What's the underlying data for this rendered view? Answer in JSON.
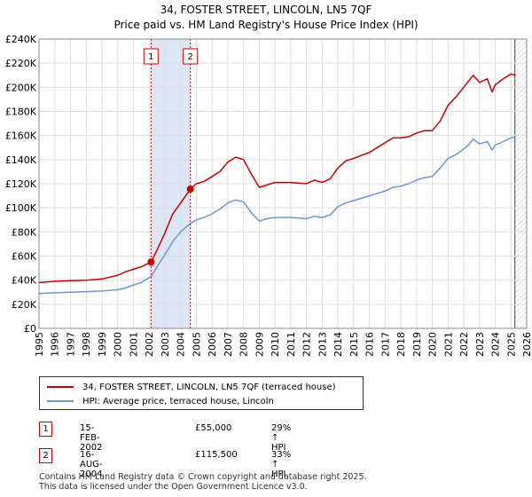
{
  "header": {
    "title": "34, FOSTER STREET, LINCOLN, LN5 7QF",
    "subtitle": "Price paid vs. HM Land Registry's House Price Index (HPI)"
  },
  "colors": {
    "property": "#cc0000",
    "hpi": "#6b98d4",
    "band": "#dde6f5",
    "grid": "#dddddd"
  },
  "chart_data": {
    "type": "line",
    "title": "34, FOSTER STREET, LINCOLN, LN5 7QF",
    "subtitle": "Price paid vs. HM Land Registry's House Price Index (HPI)",
    "xlabel": "",
    "ylabel": "",
    "xlim": [
      1995,
      2026
    ],
    "ylim": [
      0,
      240000
    ],
    "grid": true,
    "x_ticks": [
      1995,
      1996,
      1997,
      1998,
      1999,
      2000,
      2001,
      2002,
      2003,
      2004,
      2005,
      2006,
      2007,
      2008,
      2009,
      2010,
      2011,
      2012,
      2013,
      2014,
      2015,
      2016,
      2017,
      2018,
      2019,
      2020,
      2021,
      2022,
      2023,
      2024,
      2025,
      2026
    ],
    "x_tick_labels": [
      "1995",
      "1996",
      "1997",
      "1998",
      "1999",
      "2000",
      "2001",
      "2002",
      "2003",
      "2004",
      "2005",
      "2006",
      "2007",
      "2008",
      "2009",
      "2010",
      "2011",
      "2012",
      "2013",
      "2014",
      "2015",
      "2016",
      "2017",
      "2018",
      "2019",
      "2020",
      "2021",
      "2022",
      "2023",
      "2024",
      "2025",
      "2026"
    ],
    "y_ticks": [
      0,
      20000,
      40000,
      60000,
      80000,
      100000,
      120000,
      140000,
      160000,
      180000,
      200000,
      220000,
      240000
    ],
    "y_tick_labels": [
      "£0",
      "£20K",
      "£40K",
      "£60K",
      "£80K",
      "£100K",
      "£120K",
      "£140K",
      "£160K",
      "£180K",
      "£200K",
      "£220K",
      "£240K"
    ],
    "series": [
      {
        "name": "34, FOSTER STREET, LINCOLN, LN5 7QF (terraced house)",
        "x": [
          1995.0,
          1996.0,
          1997.0,
          1998.0,
          1999.0,
          2000.0,
          2000.5,
          2001.0,
          2001.5,
          2002.12,
          2002.5,
          2003.0,
          2003.5,
          2004.0,
          2004.62,
          2005.0,
          2005.5,
          2006.0,
          2006.5,
          2007.0,
          2007.5,
          2008.0,
          2008.5,
          2009.0,
          2009.5,
          2010.0,
          2011.0,
          2012.0,
          2012.5,
          2013.0,
          2013.5,
          2014.0,
          2014.5,
          2015.0,
          2016.0,
          2017.0,
          2017.5,
          2018.0,
          2018.5,
          2019.0,
          2019.5,
          2020.0,
          2020.5,
          2021.0,
          2021.5,
          2022.0,
          2022.3,
          2022.6,
          2023.0,
          2023.5,
          2023.8,
          2024.0,
          2024.5,
          2025.0,
          2025.3
        ],
        "values": [
          38000,
          39000,
          39500,
          40000,
          41000,
          44000,
          47000,
          49000,
          51000,
          55000,
          65000,
          79000,
          95000,
          104000,
          115500,
          120000,
          122000,
          126000,
          130000,
          138000,
          142000,
          140000,
          128000,
          117000,
          119000,
          121000,
          121000,
          120000,
          123000,
          121000,
          124000,
          133000,
          139000,
          141000,
          146000,
          154000,
          158000,
          158000,
          159000,
          162000,
          164000,
          164000,
          172000,
          185000,
          192000,
          200000,
          205000,
          210000,
          204000,
          207000,
          196000,
          202000,
          207000,
          211000,
          210000
        ]
      },
      {
        "name": "HPI: Average price, terraced house, Lincoln",
        "x": [
          1995.0,
          1996.0,
          1997.0,
          1998.0,
          1999.0,
          2000.0,
          2000.5,
          2001.0,
          2001.5,
          2002.12,
          2002.5,
          2003.0,
          2003.5,
          2004.0,
          2004.62,
          2005.0,
          2005.5,
          2006.0,
          2006.5,
          2007.0,
          2007.5,
          2008.0,
          2008.5,
          2009.0,
          2009.5,
          2010.0,
          2011.0,
          2012.0,
          2012.5,
          2013.0,
          2013.5,
          2014.0,
          2014.5,
          2015.0,
          2016.0,
          2017.0,
          2017.5,
          2018.0,
          2018.5,
          2019.0,
          2019.5,
          2020.0,
          2020.5,
          2021.0,
          2021.5,
          2022.0,
          2022.3,
          2022.6,
          2023.0,
          2023.5,
          2023.8,
          2024.0,
          2024.5,
          2025.0,
          2025.3
        ],
        "values": [
          29000,
          29500,
          30000,
          30500,
          31000,
          32000,
          33500,
          36000,
          38000,
          43000,
          51000,
          61000,
          72000,
          80000,
          87000,
          90000,
          92000,
          95000,
          99000,
          104000,
          106500,
          105000,
          96000,
          89000,
          91000,
          92000,
          92000,
          91000,
          93000,
          92000,
          94000,
          101000,
          104000,
          106000,
          110000,
          114000,
          117000,
          118000,
          120000,
          123000,
          125000,
          126000,
          133000,
          141000,
          144000,
          149000,
          152000,
          157000,
          153000,
          155000,
          148000,
          152000,
          155000,
          158000,
          159000
        ]
      }
    ],
    "sales": [
      {
        "label": "1",
        "x": 2002.12,
        "value": 55000
      },
      {
        "label": "2",
        "x": 2004.62,
        "value": 115500
      }
    ],
    "shaded_band": [
      2002.12,
      2004.62
    ],
    "hatched_from": 2025.25
  },
  "legend": {
    "property_label": "34, FOSTER STREET, LINCOLN, LN5 7QF (terraced house)",
    "hpi_label": "HPI: Average price, terraced house, Lincoln"
  },
  "transactions": [
    {
      "label": "1",
      "date": "15-FEB-2002",
      "price": "£55,000",
      "hpi": "29% ↑ HPI"
    },
    {
      "label": "2",
      "date": "16-AUG-2004",
      "price": "£115,500",
      "hpi": "33% ↑ HPI"
    }
  ],
  "footer": {
    "line1": "Contains HM Land Registry data © Crown copyright and database right 2025.",
    "line2": "This data is licensed under the Open Government Licence v3.0."
  }
}
